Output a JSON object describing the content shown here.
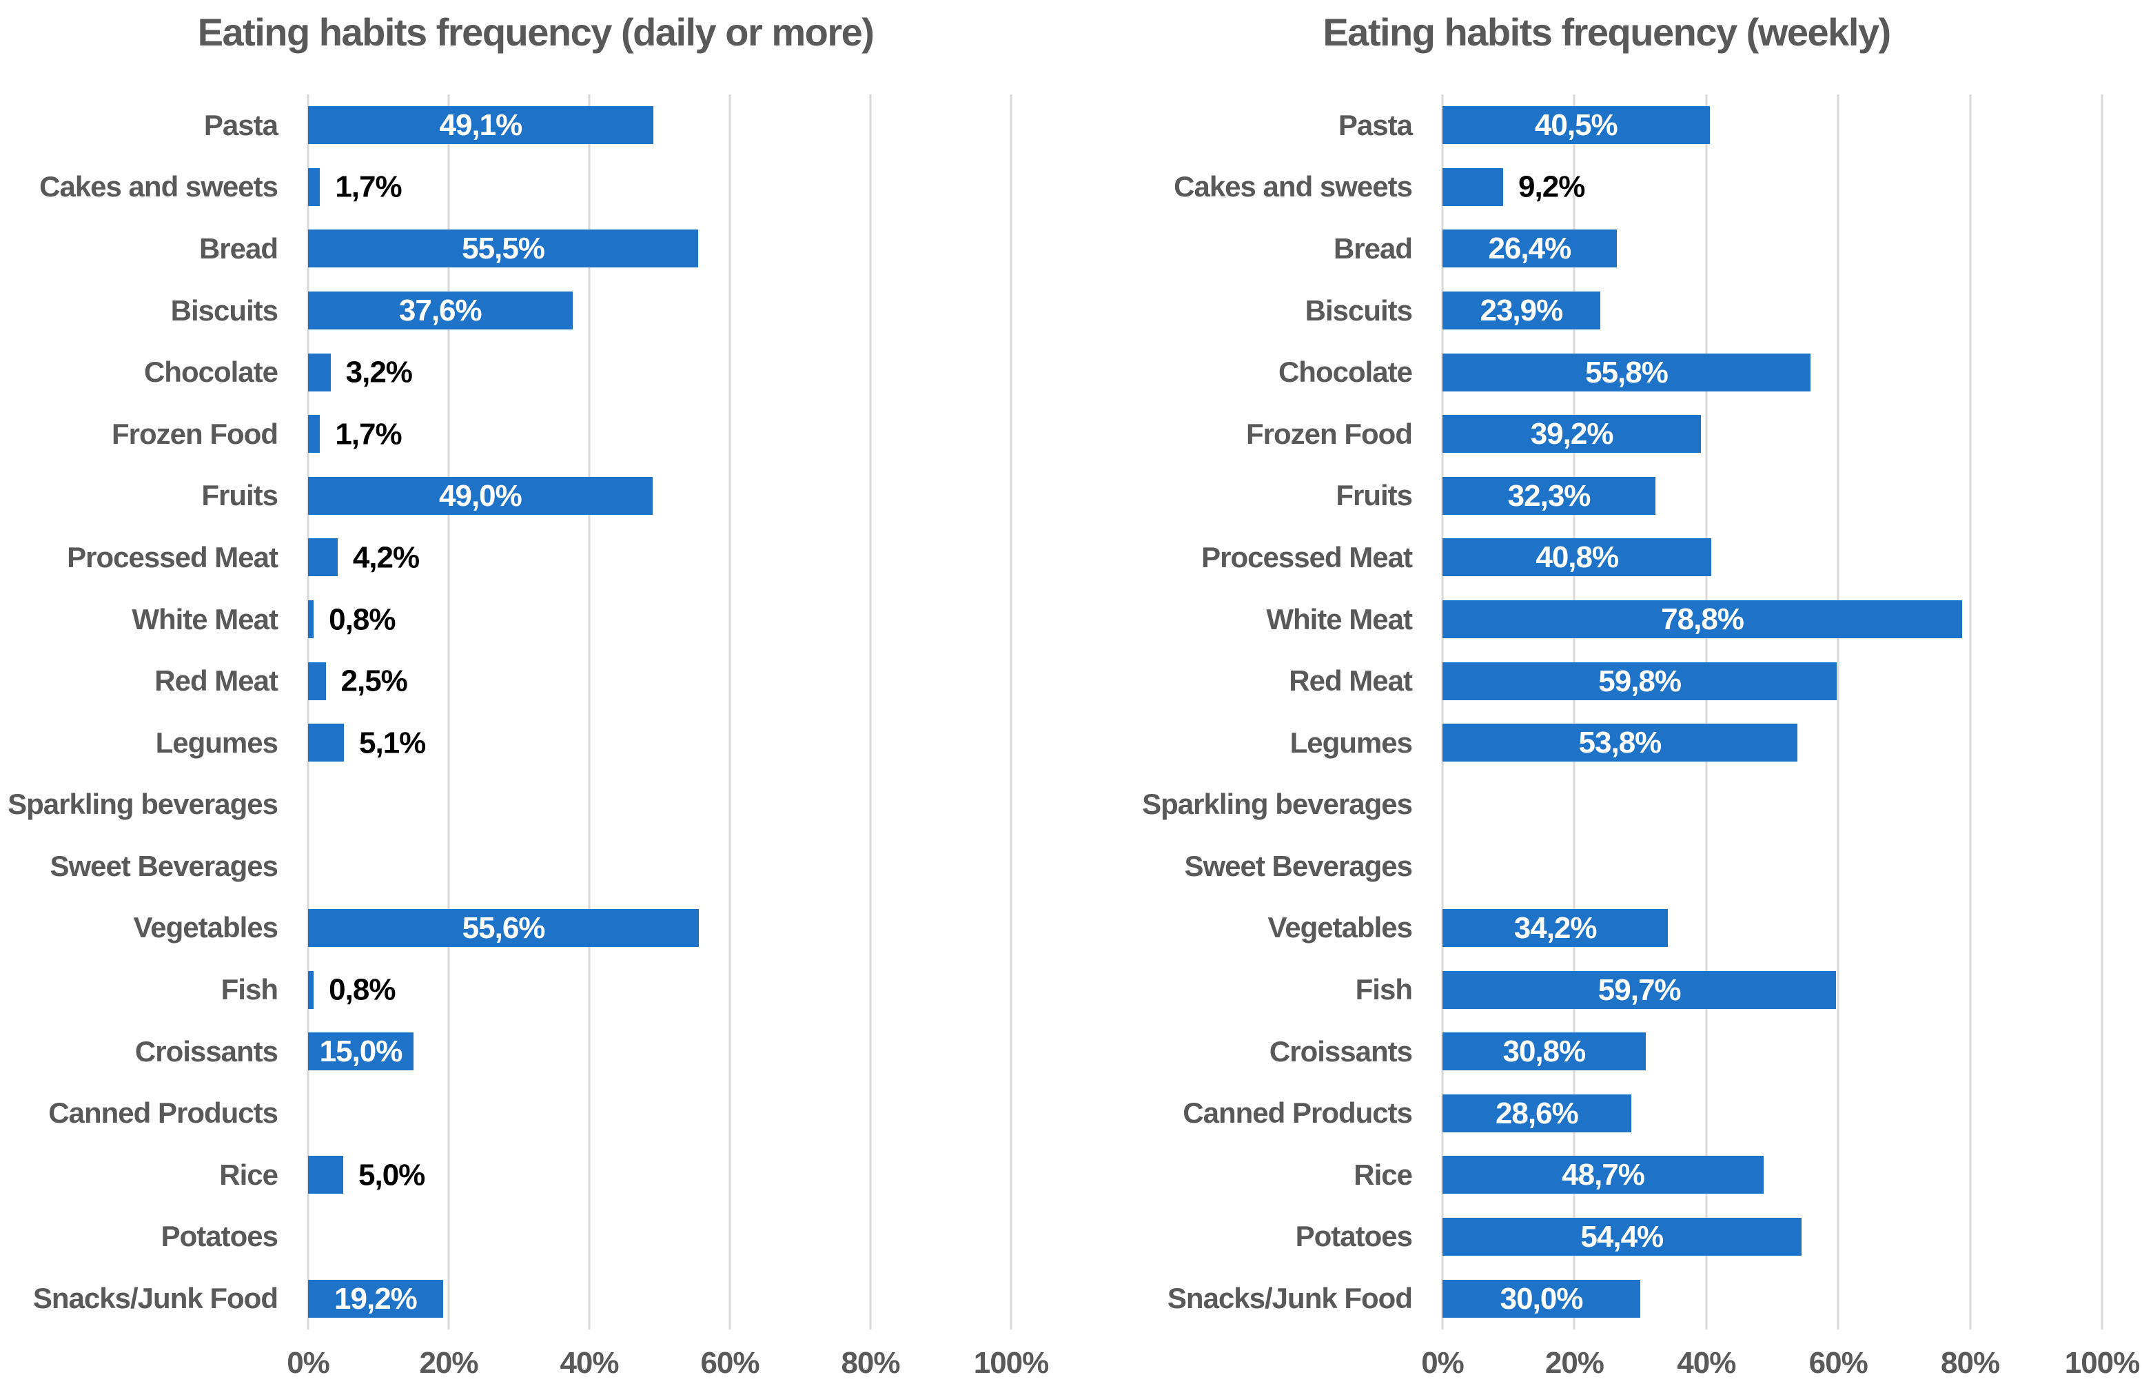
{
  "page": {
    "background": "#FFFFFF"
  },
  "colors": {
    "bar": "#1E73C8",
    "gridline": "#D9D9D9",
    "text": "#595959",
    "value_inside": "#FFFFFF",
    "value_outside": "#000000"
  },
  "chart_data": [
    {
      "type": "bar",
      "orientation": "horizontal",
      "title": "Eating habits frequency (daily or more)",
      "categories": [
        "Pasta",
        "Cakes and sweets",
        "Bread",
        "Biscuits",
        "Chocolate",
        "Frozen Food",
        "Fruits",
        "Processed Meat",
        "White Meat",
        "Red Meat",
        "Legumes",
        "Sparkling beverages",
        "Sweet Beverages",
        "Vegetables",
        "Fish",
        "Croissants",
        "Canned Products",
        "Rice",
        "Potatoes",
        "Snacks/Junk Food"
      ],
      "values": [
        49.1,
        1.7,
        55.5,
        37.6,
        3.2,
        1.7,
        49.0,
        4.2,
        0.8,
        2.5,
        5.1,
        null,
        null,
        55.6,
        0.8,
        15.0,
        null,
        5.0,
        null,
        19.2
      ],
      "value_labels": [
        "49,1%",
        "1,7%",
        "55,5%",
        "37,6%",
        "3,2%",
        "1,7%",
        "49,0%",
        "4,2%",
        "0,8%",
        "2,5%",
        "5,1%",
        null,
        null,
        "55,6%",
        "0,8%",
        "15,0%",
        null,
        "5,0%",
        null,
        "19,2%"
      ],
      "xlim": [
        0,
        100
      ],
      "x_tick_labels": [
        "0%",
        "20%",
        "40%",
        "60%",
        "80%",
        "100%"
      ],
      "grid": true,
      "legend": false,
      "inside_label_min": 15
    },
    {
      "type": "bar",
      "orientation": "horizontal",
      "title": "Eating habits frequency (weekly)",
      "categories": [
        "Pasta",
        "Cakes and sweets",
        "Bread",
        "Biscuits",
        "Chocolate",
        "Frozen Food",
        "Fruits",
        "Processed Meat",
        "White Meat",
        "Red Meat",
        "Legumes",
        "Sparkling beverages",
        "Sweet Beverages",
        "Vegetables",
        "Fish",
        "Croissants",
        "Canned Products",
        "Rice",
        "Potatoes",
        "Snacks/Junk Food"
      ],
      "values": [
        40.5,
        9.2,
        26.4,
        23.9,
        55.8,
        39.2,
        32.3,
        40.8,
        78.8,
        59.8,
        53.8,
        null,
        null,
        34.2,
        59.7,
        30.8,
        28.6,
        48.7,
        54.4,
        30.0
      ],
      "value_labels": [
        "40,5%",
        "9,2%",
        "26,4%",
        "23,9%",
        "55,8%",
        "39,2%",
        "32,3%",
        "40,8%",
        "78,8%",
        "59,8%",
        "53,8%",
        null,
        null,
        "34,2%",
        "59,7%",
        "30,8%",
        "28,6%",
        "48,7%",
        "54,4%",
        "30,0%"
      ],
      "xlim": [
        0,
        100
      ],
      "x_tick_labels": [
        "0%",
        "20%",
        "40%",
        "60%",
        "80%",
        "100%"
      ],
      "grid": true,
      "legend": false,
      "inside_label_min": 15
    }
  ]
}
